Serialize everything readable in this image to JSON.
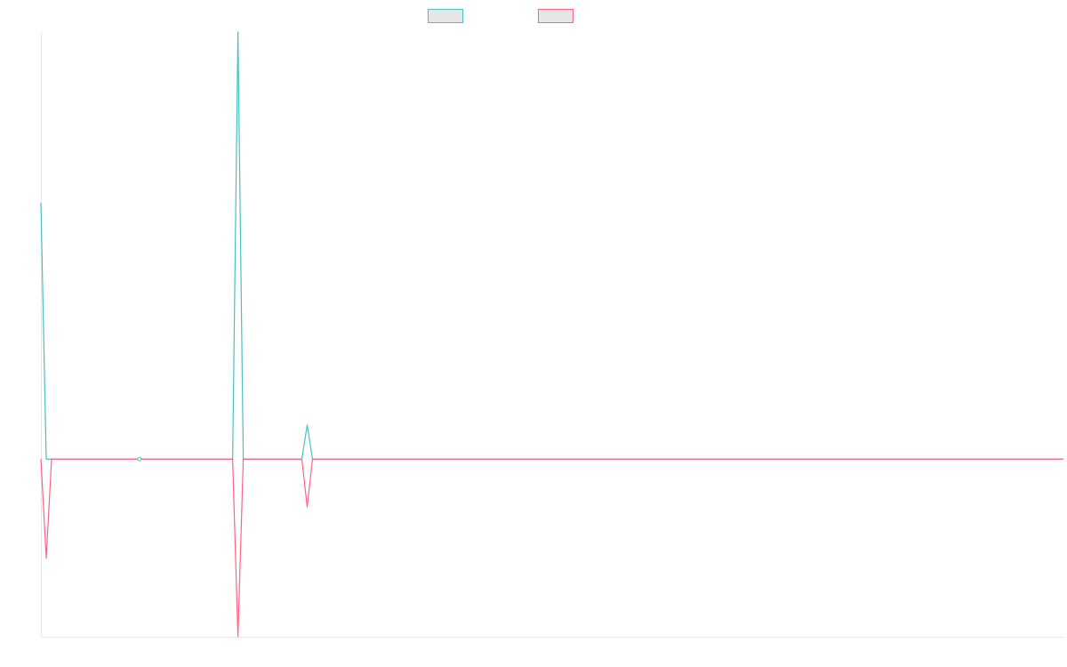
{
  "chart_data": {
    "type": "line",
    "title": "",
    "xlabel": "",
    "ylabel": "",
    "grid": false,
    "legend": "top-center",
    "x": [
      0,
      1,
      2,
      3,
      4,
      5,
      6,
      7,
      8,
      9,
      10,
      11,
      12,
      13,
      14,
      15,
      16,
      17,
      18,
      19,
      20,
      21,
      22,
      23,
      24,
      25,
      26,
      27,
      28,
      29,
      30,
      31,
      32,
      33,
      34,
      35,
      36,
      37,
      38,
      39,
      40,
      41,
      42,
      43,
      44,
      45,
      46,
      47,
      48,
      49,
      50,
      51,
      52,
      53,
      54,
      55,
      56,
      57,
      58,
      59,
      60,
      61,
      62,
      63,
      64,
      65,
      66,
      67,
      68,
      69,
      70,
      71,
      72,
      73,
      74,
      75,
      76,
      77,
      78,
      79,
      80,
      81,
      82,
      83,
      84,
      85,
      86,
      87,
      88,
      89,
      90,
      91,
      92,
      93,
      94,
      95,
      96,
      97,
      98,
      99,
      100,
      101,
      102,
      103,
      104,
      105,
      106,
      107,
      108,
      109,
      110,
      111,
      112,
      113,
      114,
      115,
      116,
      117,
      118,
      119,
      120,
      121,
      122,
      123,
      124,
      125,
      126,
      127,
      128,
      129,
      130,
      131,
      132,
      133,
      134,
      135,
      136,
      137,
      138,
      139,
      140,
      141,
      142,
      143,
      144,
      145,
      146,
      147,
      148,
      149,
      150,
      151,
      152,
      153,
      154,
      155,
      156,
      157,
      158,
      159,
      160,
      161,
      162,
      163,
      164,
      165,
      166,
      167,
      168,
      169,
      170,
      171,
      172,
      173,
      174,
      175,
      176,
      177,
      178,
      179,
      180,
      181,
      182,
      183,
      184,
      185,
      186,
      187,
      188,
      189,
      190,
      191,
      192
    ],
    "xlim": [
      0,
      192
    ],
    "ylim": [
      -52,
      125
    ],
    "series": [
      {
        "color": "#4bc0c0",
        "values": [
          75,
          0,
          0,
          0,
          0,
          0,
          0,
          0,
          0,
          0,
          0,
          0,
          0,
          0,
          0,
          0,
          0,
          0,
          0,
          0,
          0,
          0,
          0,
          0,
          0,
          0,
          0,
          0,
          0,
          0,
          0,
          0,
          0,
          0,
          0,
          0,
          0,
          125,
          0,
          0,
          0,
          0,
          0,
          0,
          0,
          0,
          0,
          0,
          0,
          0,
          10,
          0,
          0,
          0,
          0,
          0,
          0,
          0,
          0,
          0,
          0,
          0,
          0,
          0,
          0,
          0,
          0,
          0,
          0,
          0,
          0,
          0,
          0,
          0,
          0,
          0,
          0,
          0,
          0,
          0,
          0,
          0,
          0,
          0,
          0,
          0,
          0,
          0,
          0,
          0,
          0,
          0,
          0,
          0,
          0,
          0,
          0,
          0,
          0,
          0,
          0,
          0,
          0,
          0,
          0,
          0,
          0,
          0,
          0,
          0,
          0,
          0,
          0,
          0,
          0,
          0,
          0,
          0,
          0,
          0,
          0,
          0,
          0,
          0,
          0,
          0,
          0,
          0,
          0,
          0,
          0,
          0,
          0,
          0,
          0,
          0,
          0,
          0,
          0,
          0,
          0,
          0,
          0,
          0,
          0,
          0,
          0,
          0,
          0,
          0,
          0,
          0,
          0,
          0,
          0,
          0,
          0,
          0,
          0,
          0,
          0,
          0,
          0,
          0,
          0,
          0,
          0,
          0,
          0,
          0,
          0,
          0,
          0,
          0,
          0,
          0,
          0,
          0,
          0,
          0,
          0,
          0,
          0,
          0,
          0,
          0,
          0,
          0,
          0,
          0,
          0,
          0,
          0
        ]
      },
      {
        "color": "#ff6384",
        "values": [
          0,
          -29,
          0,
          0,
          0,
          0,
          0,
          0,
          0,
          0,
          0,
          0,
          0,
          0,
          0,
          0,
          0,
          0,
          0,
          0,
          0,
          0,
          0,
          0,
          0,
          0,
          0,
          0,
          0,
          0,
          0,
          0,
          0,
          0,
          0,
          0,
          0,
          -52,
          0,
          0,
          0,
          0,
          0,
          0,
          0,
          0,
          0,
          0,
          0,
          0,
          -14,
          0,
          0,
          0,
          0,
          0,
          0,
          0,
          0,
          0,
          0,
          0,
          0,
          0,
          0,
          0,
          0,
          0,
          0,
          0,
          0,
          0,
          0,
          0,
          0,
          0,
          0,
          0,
          0,
          0,
          0,
          0,
          0,
          0,
          0,
          0,
          0,
          0,
          0,
          0,
          0,
          0,
          0,
          0,
          0,
          0,
          0,
          0,
          0,
          0,
          0,
          0,
          0,
          0,
          0,
          0,
          0,
          0,
          0,
          0,
          0,
          0,
          0,
          0,
          0,
          0,
          0,
          0,
          0,
          0,
          0,
          0,
          0,
          0,
          0,
          0,
          0,
          0,
          0,
          0,
          0,
          0,
          0,
          0,
          0,
          0,
          0,
          0,
          0,
          0,
          0,
          0,
          0,
          0,
          0,
          0,
          0,
          0,
          0,
          0,
          0,
          0,
          0,
          0,
          0,
          0,
          0,
          0,
          0,
          0,
          0,
          0,
          0,
          0,
          0,
          0,
          0,
          0,
          0,
          0,
          0,
          0,
          0,
          0,
          0,
          0,
          0,
          0,
          0,
          0,
          0,
          0,
          0,
          0,
          0,
          0,
          0,
          0,
          0,
          0,
          0,
          0,
          0
        ]
      }
    ],
    "extra_series_fill": "#e6e6e6"
  }
}
